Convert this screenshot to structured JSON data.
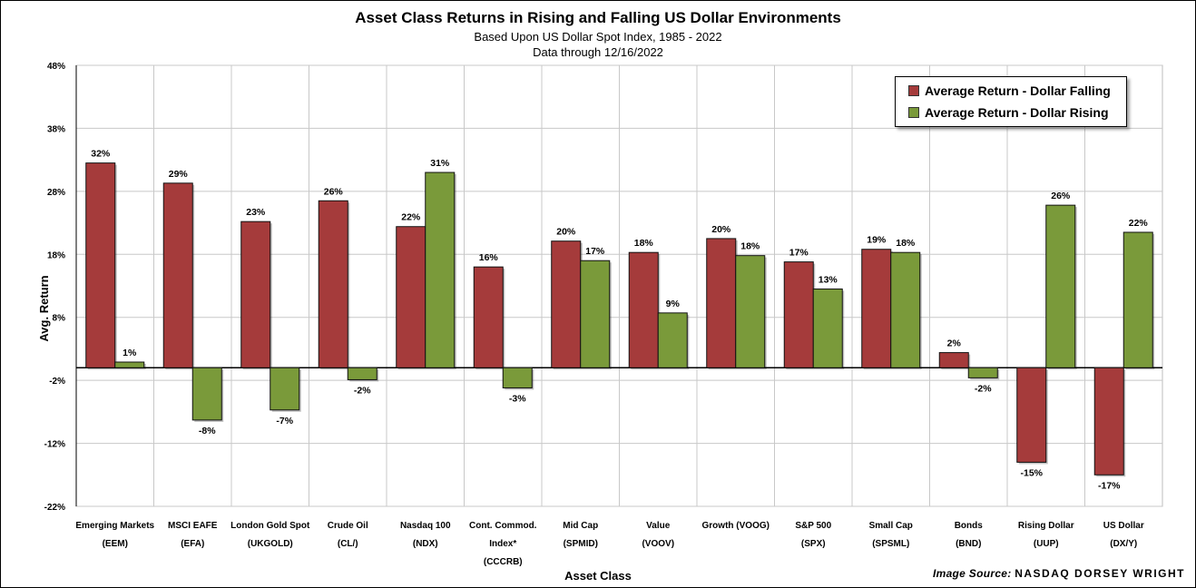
{
  "title": "Asset Class Returns in Rising and Falling US Dollar Environments",
  "subtitle_1": "Based Upon US Dollar Spot Index, 1985 - 2022",
  "subtitle_2": "Data through 12/16/2022",
  "image_source_label": "Image Source:",
  "image_source_brand": "NASDAQ DORSEY WRIGHT",
  "colors": {
    "falling": "#a53b3b",
    "rising": "#7a9a3a",
    "grid": "#c8c8c8",
    "axis": "#000000"
  },
  "chart_data": {
    "type": "bar",
    "title": "Asset Class Returns in Rising and Falling US Dollar Environments",
    "xlabel": "Asset Class",
    "ylabel": "Avg. Return",
    "ylim": [
      -22,
      48
    ],
    "yticks": [
      "48%",
      "38%",
      "28%",
      "18%",
      "8%",
      "-2%",
      "-12%",
      "-22%"
    ],
    "ytick_values": [
      48,
      38,
      28,
      18,
      8,
      -2,
      -12,
      -22
    ],
    "grid": true,
    "legend_position": "top-right",
    "categories": [
      {
        "line1": "Emerging Markets",
        "line2": "(EEM)",
        "line3": ""
      },
      {
        "line1": "MSCI EAFE",
        "line2": "(EFA)",
        "line3": ""
      },
      {
        "line1": "London Gold Spot",
        "line2": "(UKGOLD)",
        "line3": ""
      },
      {
        "line1": "Crude Oil",
        "line2": "(CL/)",
        "line3": ""
      },
      {
        "line1": "Nasdaq 100",
        "line2": "(NDX)",
        "line3": ""
      },
      {
        "line1": "Cont. Commod.",
        "line2": "Index*",
        "line3": "(CCCRB)"
      },
      {
        "line1": "Mid Cap",
        "line2": "(SPMID)",
        "line3": ""
      },
      {
        "line1": "Value",
        "line2": "(VOOV)",
        "line3": ""
      },
      {
        "line1": "Growth (VOOG)",
        "line2": "",
        "line3": ""
      },
      {
        "line1": "S&P 500",
        "line2": "(SPX)",
        "line3": ""
      },
      {
        "line1": "Small Cap",
        "line2": "(SPSML)",
        "line3": ""
      },
      {
        "line1": "Bonds",
        "line2": "(BND)",
        "line3": ""
      },
      {
        "line1": "Rising Dollar",
        "line2": "(UUP)",
        "line3": ""
      },
      {
        "line1": "US Dollar",
        "line2": "(DX/Y)",
        "line3": ""
      }
    ],
    "series": [
      {
        "name": "Average Return - Dollar Falling",
        "values": [
          32.5,
          29.3,
          23.2,
          26.5,
          22.4,
          16.0,
          20.1,
          18.3,
          20.5,
          16.8,
          18.8,
          2.4,
          -15.0,
          -17.0
        ],
        "labels": [
          "32%",
          "29%",
          "23%",
          "26%",
          "22%",
          "16%",
          "20%",
          "18%",
          "20%",
          "17%",
          "19%",
          "2%",
          "-15%",
          "-17%"
        ]
      },
      {
        "name": "Average Return - Dollar Rising",
        "values": [
          0.9,
          -8.3,
          -6.7,
          -1.9,
          31.0,
          -3.2,
          17.0,
          8.7,
          17.8,
          12.5,
          18.3,
          -1.6,
          25.8,
          21.5
        ],
        "labels": [
          "1%",
          "-8%",
          "-7%",
          "-2%",
          "31%",
          "-3%",
          "17%",
          "9%",
          "18%",
          "13%",
          "18%",
          "-2%",
          "26%",
          "22%"
        ]
      }
    ]
  }
}
